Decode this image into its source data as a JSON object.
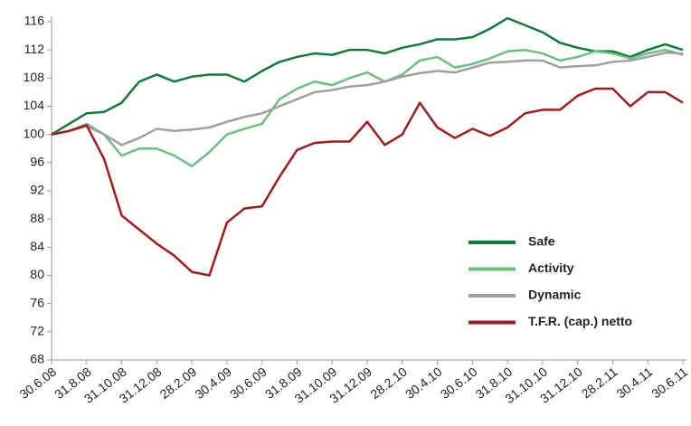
{
  "chart_data": {
    "type": "line",
    "categories": [
      "30.6.08",
      null,
      "31.8.08",
      null,
      "31.10.08",
      null,
      "31.12.08",
      null,
      "28.2.09",
      null,
      "30.4.09",
      null,
      "30.6.09",
      null,
      "31.8.09",
      null,
      "31.10.09",
      null,
      "31.12.09",
      null,
      "28.2.10",
      null,
      "30.4.10",
      null,
      "30.6.10",
      null,
      "31.8.10",
      null,
      "31.10.10",
      null,
      "31.12.10",
      null,
      "28.2.11",
      null,
      "30.4.11",
      null,
      "30.6.11"
    ],
    "series": [
      {
        "name": "Safe",
        "color": "#0e7b3a",
        "values": [
          100,
          101.5,
          103,
          103.2,
          104.5,
          107.5,
          108.5,
          107.5,
          108.2,
          108.5,
          108.5,
          107.5,
          109,
          110.3,
          111,
          111.5,
          111.3,
          112,
          112,
          111.5,
          112.3,
          112.8,
          113.5,
          113.5,
          113.8,
          115,
          116.5,
          115.5,
          114.5,
          113,
          112.3,
          111.8,
          111.8,
          111,
          112,
          112.8,
          112
        ]
      },
      {
        "name": "Activity",
        "color": "#6cbf7f",
        "values": [
          100,
          100.5,
          101.5,
          100,
          97,
          98,
          98,
          97,
          95.5,
          97.5,
          100,
          100.8,
          101.5,
          105,
          106.5,
          107.5,
          107,
          108,
          108.8,
          107.5,
          108.5,
          110.5,
          111,
          109.5,
          110,
          110.8,
          111.8,
          112,
          111.5,
          110.5,
          111,
          111.8,
          111.5,
          110.8,
          111.5,
          112,
          111.3
        ]
      },
      {
        "name": "Dynamic",
        "color": "#a09fa4",
        "values": [
          100,
          100.5,
          101.2,
          100,
          98.5,
          99.5,
          100.8,
          100.5,
          100.7,
          101,
          101.8,
          102.5,
          103,
          104,
          105,
          106,
          106.3,
          106.8,
          107,
          107.5,
          108.2,
          108.7,
          109,
          108.8,
          109.5,
          110.2,
          110.3,
          110.5,
          110.5,
          109.5,
          109.7,
          109.8,
          110.3,
          110.5,
          111,
          111.6,
          111.5
        ]
      },
      {
        "name": "T.F.R. (cap.) netto",
        "color": "#a01c1c",
        "values": [
          100,
          100.5,
          101.3,
          96.5,
          88.5,
          86.5,
          84.5,
          82.8,
          80.5,
          80,
          87.5,
          89.5,
          89.8,
          94,
          97.8,
          98.8,
          99,
          99,
          101.8,
          98.5,
          100,
          104.5,
          101,
          99.5,
          100.8,
          99.8,
          101,
          103,
          103.5,
          103.5,
          105.5,
          106.5,
          106.5,
          104,
          106,
          106,
          104.5
        ]
      }
    ],
    "ylim": [
      68,
      116
    ],
    "yticks": [
      68,
      72,
      76,
      80,
      84,
      88,
      92,
      96,
      100,
      104,
      108,
      112,
      116
    ]
  }
}
